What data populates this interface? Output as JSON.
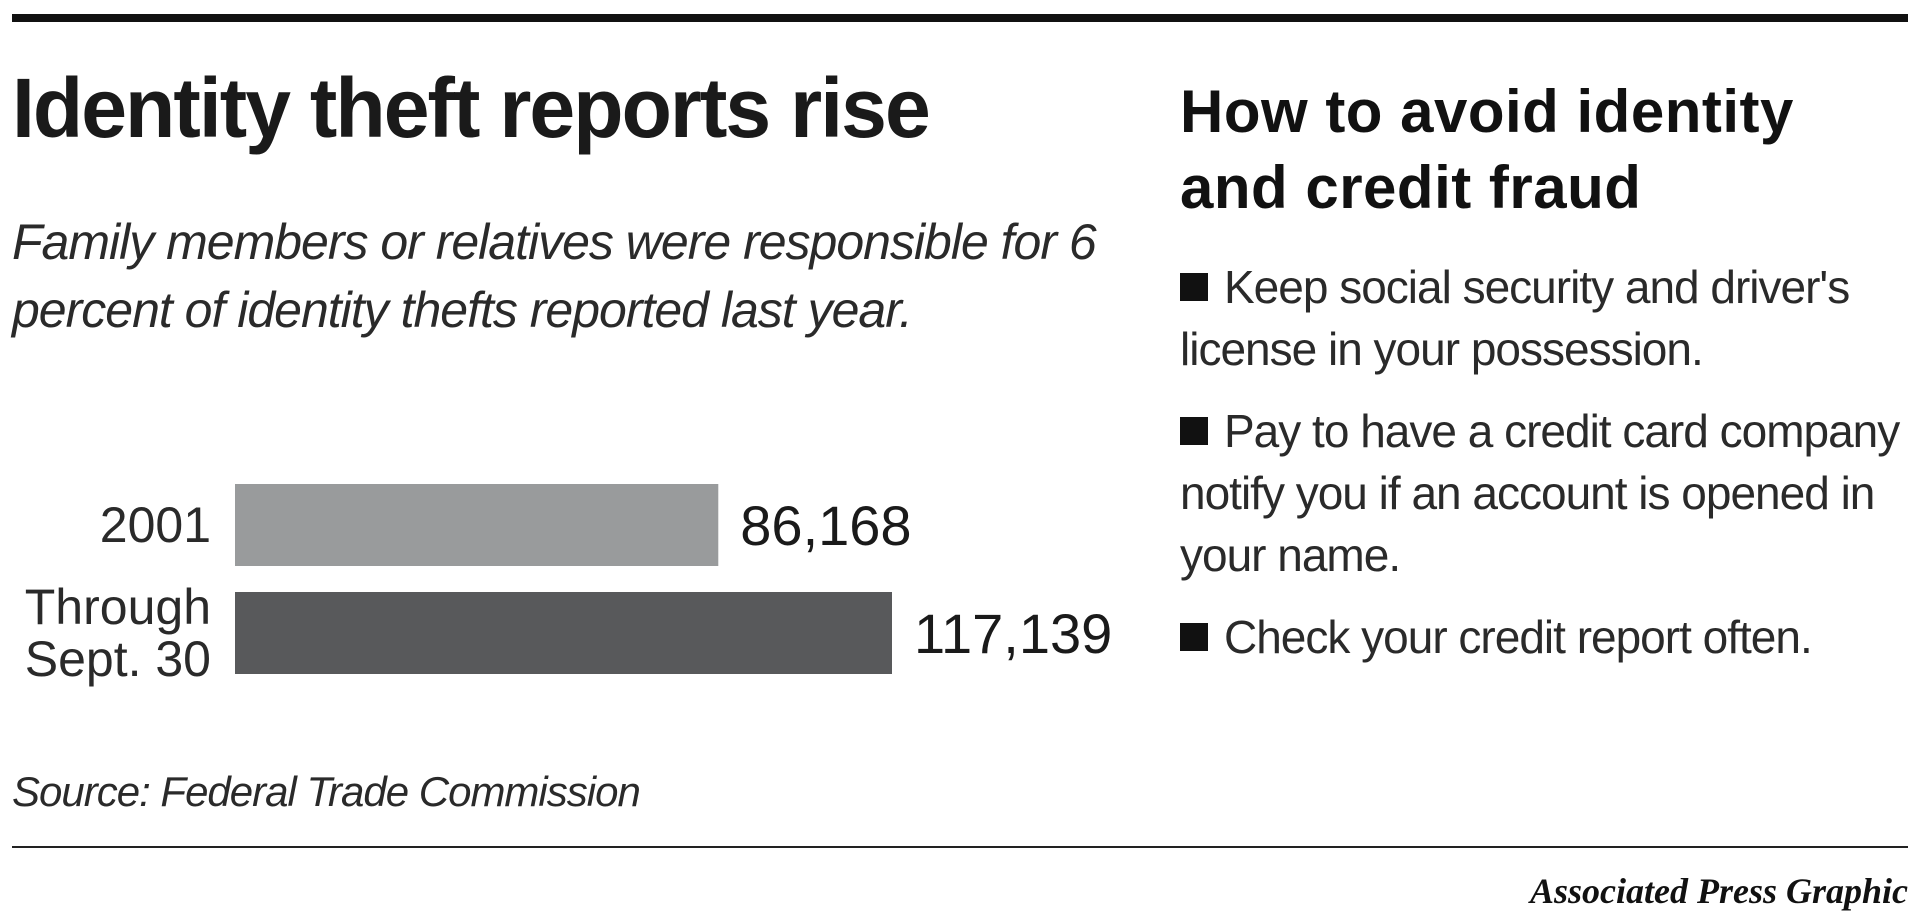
{
  "left": {
    "title": "Identity theft reports rise",
    "subtitle": "Family members or relatives were responsible for 6 percent of identity thefts reported last year.",
    "source": "Source: Federal Trade Commission"
  },
  "right": {
    "title": "How to avoid identity and credit fraud",
    "tips": [
      "Keep social security and driver's license in your possession.",
      "Pay to have a credit card company notify you if an account is opened in your name.",
      "Check your credit report often."
    ]
  },
  "credit": "Associated Press Graphic",
  "chart_data": {
    "type": "bar",
    "orientation": "horizontal",
    "categories": [
      [
        "2001"
      ],
      [
        "Through",
        "Sept. 30"
      ]
    ],
    "values": [
      86168,
      117139
    ],
    "value_labels": [
      "86,168",
      "117,139"
    ],
    "colors": [
      "#999b9c",
      "#58595b"
    ],
    "xlim": [
      0,
      117139
    ],
    "grid": false
  }
}
